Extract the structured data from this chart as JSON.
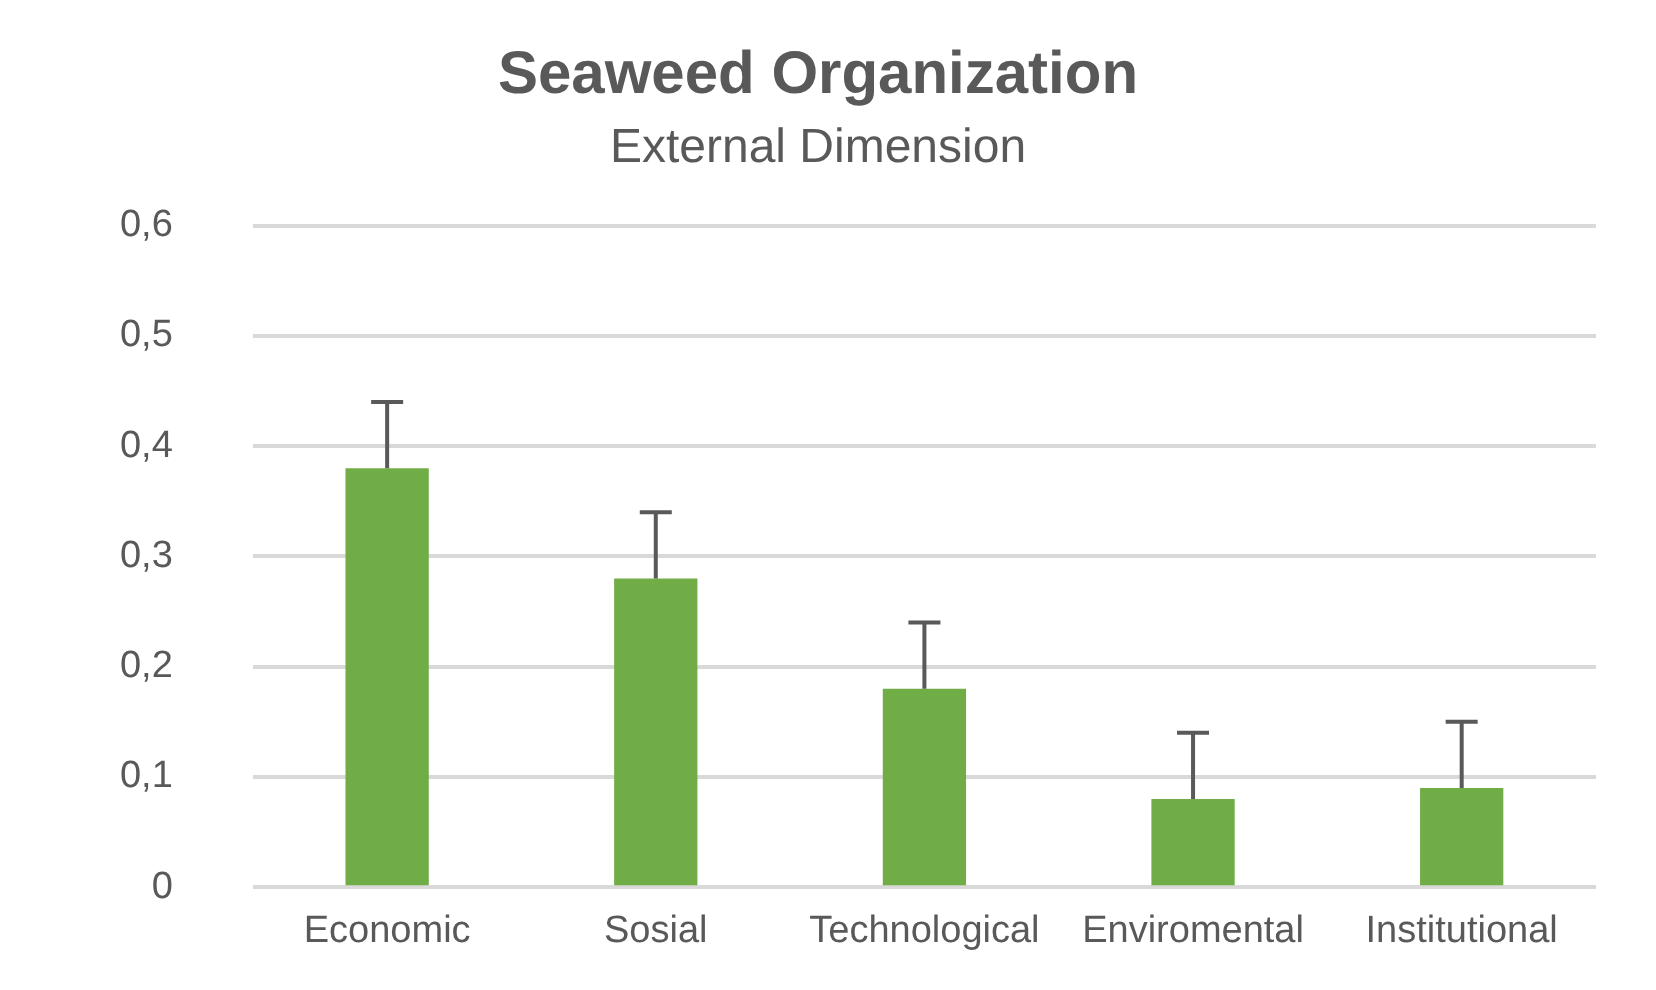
{
  "chart_data": {
    "type": "bar",
    "title": "Seaweed Organization",
    "subtitle": "External Dimension",
    "categories": [
      "Economic",
      "Sosial",
      "Technological",
      "Enviromental",
      "Institutional"
    ],
    "values": [
      0.38,
      0.28,
      0.18,
      0.08,
      0.09
    ],
    "color": "#70ad47",
    "errors": [
      [
        0.38,
        0.44
      ],
      [
        0.28,
        0.34
      ],
      [
        0.18,
        0.24
      ],
      [
        0.08,
        0.14
      ],
      [
        0.09,
        0.15
      ]
    ],
    "ylim": [
      0,
      0.6
    ],
    "yticks": [
      0,
      {
        "value": 0.1,
        "label": "0,1"
      },
      {
        "value": 0.2,
        "label": "0,2"
      },
      {
        "value": 0.3,
        "label": "0,3"
      },
      {
        "value": 0.4,
        "label": "0,4"
      },
      {
        "value": 0.5,
        "label": "0,5"
      },
      {
        "value": 0.6,
        "label": "0,6"
      }
    ],
    "grid": "y",
    "legend": false
  }
}
